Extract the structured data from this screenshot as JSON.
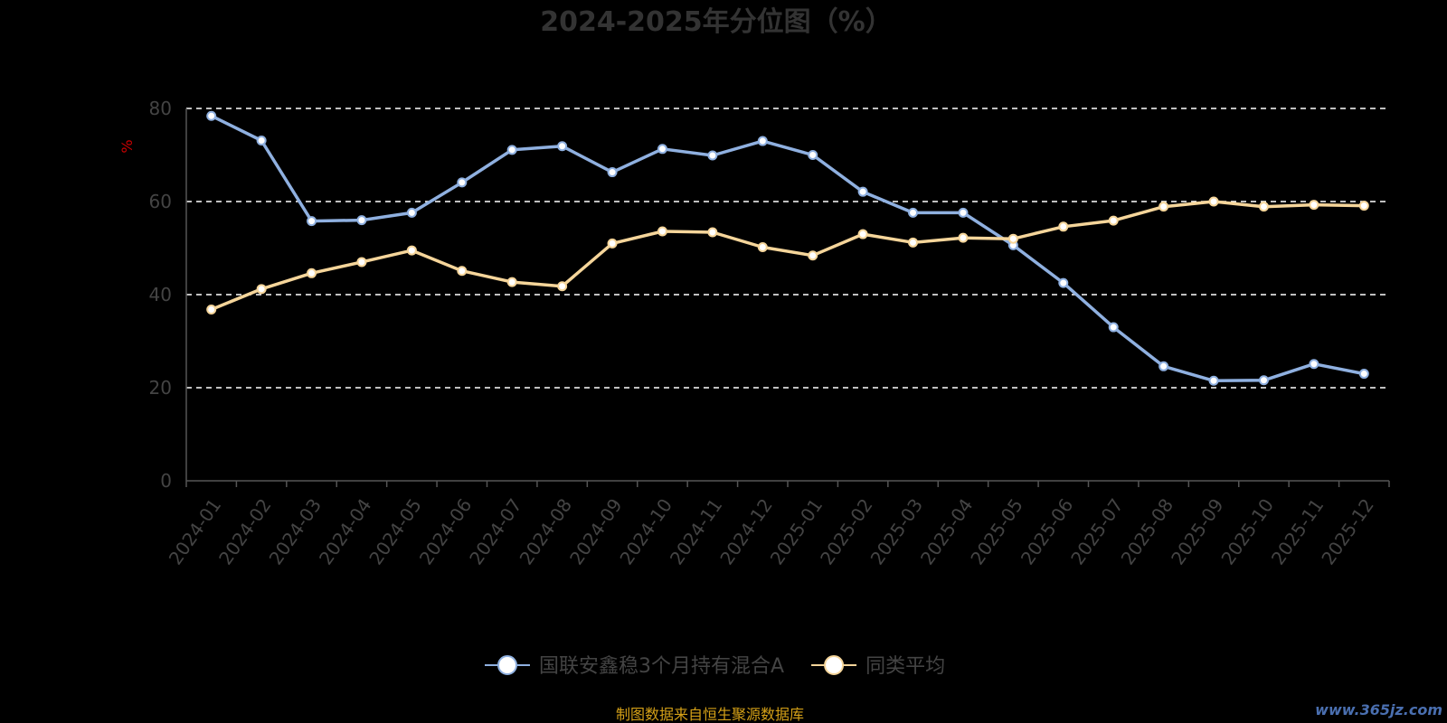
{
  "chart_data": {
    "type": "line",
    "title": "2024-2025年分位图（%）",
    "ylabel": "%",
    "ylim": [
      0,
      80
    ],
    "yticks": [
      0,
      20,
      40,
      60,
      80
    ],
    "grid": true,
    "legend_position": "bottom",
    "categories": [
      "2024-01",
      "2024-02",
      "2024-03",
      "2024-04",
      "2024-05",
      "2024-06",
      "2024-07",
      "2024-08",
      "2024-09",
      "2024-10",
      "2024-11",
      "2024-12",
      "2025-01",
      "2025-02",
      "2025-03",
      "2025-04",
      "2025-05",
      "2025-06",
      "2025-07",
      "2025-08",
      "2025-09",
      "2025-10",
      "2025-11",
      "2025-12"
    ],
    "series": [
      {
        "name": "国联安鑫稳3个月持有混合A",
        "color": "#8fb0e0",
        "values": [
          78.4,
          73.1,
          55.8,
          56.0,
          57.6,
          64.1,
          71.1,
          71.9,
          66.3,
          71.3,
          69.9,
          73.0,
          70.0,
          62.1,
          57.6,
          57.6,
          50.6,
          42.5,
          33.0,
          24.6,
          21.5,
          21.6,
          25.1,
          23.0
        ]
      },
      {
        "name": "同类平均",
        "color": "#f5d59a",
        "values": [
          36.8,
          41.2,
          44.6,
          47.0,
          49.5,
          45.1,
          42.7,
          41.8,
          51.0,
          53.6,
          53.4,
          50.2,
          48.4,
          53.0,
          51.2,
          52.2,
          52.0,
          54.6,
          55.9,
          58.9,
          60.0,
          58.9,
          59.3,
          59.1
        ]
      }
    ],
    "source_note": "制图数据来自恒生聚源数据库",
    "watermark": "www.365jz.com"
  }
}
